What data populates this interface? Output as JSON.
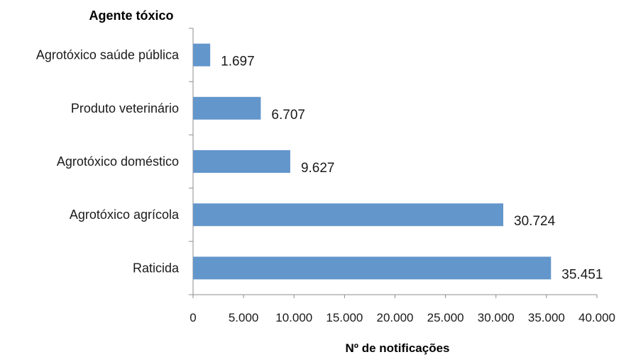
{
  "chart_data": {
    "type": "bar",
    "orientation": "horizontal",
    "title": "",
    "ylabel": "Agente tóxico",
    "xlabel": "Nº de notificações",
    "categories": [
      "Agrotóxico saúde pública",
      "Produto veterinário",
      "Agrotóxico doméstico",
      "Agrotóxico agrícola",
      "Raticida"
    ],
    "values": [
      1697,
      6707,
      9627,
      30724,
      35451
    ],
    "value_labels": [
      "1.697",
      "6.707",
      "9.627",
      "30.724",
      "35.451"
    ],
    "xlim": [
      0,
      40000
    ],
    "xticks": [
      0,
      5000,
      10000,
      15000,
      20000,
      25000,
      30000,
      35000,
      40000
    ],
    "xtick_labels": [
      "0",
      "5.000",
      "10.000",
      "15.000",
      "20.000",
      "25.000",
      "30.000",
      "35.000",
      "40.000"
    ],
    "grid": false,
    "legend": "none",
    "bar_color": "#6396cb"
  }
}
